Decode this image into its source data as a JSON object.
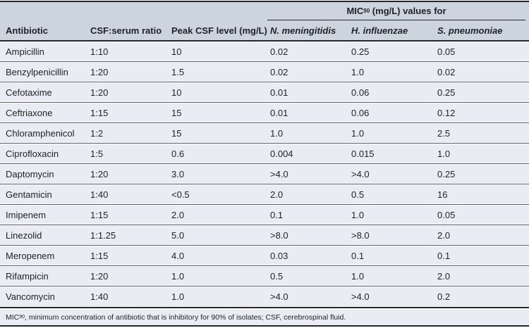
{
  "header": {
    "mic_group": {
      "prefix": "MIC",
      "subscript": "90",
      "suffix": " (mg/L) values for"
    },
    "columns": [
      "Antibiotic",
      "CSF:serum ratio",
      "Peak CSF level (mg/L)"
    ],
    "species_columns": [
      "N. meningitidis",
      "H. influenzae",
      "S. pneumoniae"
    ]
  },
  "rows": [
    {
      "antibiotic": "Ampicillin",
      "csf_serum_ratio": "1:10",
      "peak_csf_level": "10",
      "n_meningitidis": "0.02",
      "h_influenzae": "0.25",
      "s_pneumoniae": "0.05"
    },
    {
      "antibiotic": "Benzylpenicillin",
      "csf_serum_ratio": "1:20",
      "peak_csf_level": "1.5",
      "n_meningitidis": "0.02",
      "h_influenzae": "1.0",
      "s_pneumoniae": "0.02"
    },
    {
      "antibiotic": "Cefotaxime",
      "csf_serum_ratio": "1:20",
      "peak_csf_level": "10",
      "n_meningitidis": "0.01",
      "h_influenzae": "0.06",
      "s_pneumoniae": "0.25"
    },
    {
      "antibiotic": "Ceftriaxone",
      "csf_serum_ratio": "1:15",
      "peak_csf_level": "15",
      "n_meningitidis": "0.01",
      "h_influenzae": "0.06",
      "s_pneumoniae": "0.12"
    },
    {
      "antibiotic": "Chloramphenicol",
      "csf_serum_ratio": "1:2",
      "peak_csf_level": "15",
      "n_meningitidis": "1.0",
      "h_influenzae": "1.0",
      "s_pneumoniae": "2.5"
    },
    {
      "antibiotic": "Ciprofloxacin",
      "csf_serum_ratio": "1:5",
      "peak_csf_level": "0.6",
      "n_meningitidis": "0.004",
      "h_influenzae": "0.015",
      "s_pneumoniae": "1.0"
    },
    {
      "antibiotic": "Daptomycin",
      "csf_serum_ratio": "1:20",
      "peak_csf_level": "3.0",
      "n_meningitidis": ">4.0",
      "h_influenzae": ">4.0",
      "s_pneumoniae": "0.25"
    },
    {
      "antibiotic": "Gentamicin",
      "csf_serum_ratio": "1:40",
      "peak_csf_level": "<0.5",
      "n_meningitidis": "2.0",
      "h_influenzae": "0.5",
      "s_pneumoniae": "16"
    },
    {
      "antibiotic": "Imipenem",
      "csf_serum_ratio": "1:15",
      "peak_csf_level": "2.0",
      "n_meningitidis": "0.1",
      "h_influenzae": "1.0",
      "s_pneumoniae": "0.05"
    },
    {
      "antibiotic": "Linezolid",
      "csf_serum_ratio": "1:1.25",
      "peak_csf_level": "5.0",
      "n_meningitidis": ">8.0",
      "h_influenzae": ">8.0",
      "s_pneumoniae": "2.0"
    },
    {
      "antibiotic": "Meropenem",
      "csf_serum_ratio": "1:15",
      "peak_csf_level": "4.0",
      "n_meningitidis": "0.03",
      "h_influenzae": "0.1",
      "s_pneumoniae": "0.1"
    },
    {
      "antibiotic": "Rifampicin",
      "csf_serum_ratio": "1:20",
      "peak_csf_level": "1.0",
      "n_meningitidis": "0.5",
      "h_influenzae": "1.0",
      "s_pneumoniae": "2.0"
    },
    {
      "antibiotic": "Vancomycin",
      "csf_serum_ratio": "1:40",
      "peak_csf_level": "1.0",
      "n_meningitidis": ">4.0",
      "h_influenzae": ">4.0",
      "s_pneumoniae": "0.2"
    }
  ],
  "footnote": {
    "prefix": "MIC",
    "subscript": "90",
    "text": ", minimum concentration of antibiotic that is inhibitory for 90% of isolates; CSF, cerebrospinal fluid."
  },
  "colors": {
    "header-bg": "#ccd4e0",
    "row-bg": "#e9ecf2",
    "line-heavy": "#24272a",
    "line-row": "#5a5e64",
    "text": "#1f2124"
  }
}
